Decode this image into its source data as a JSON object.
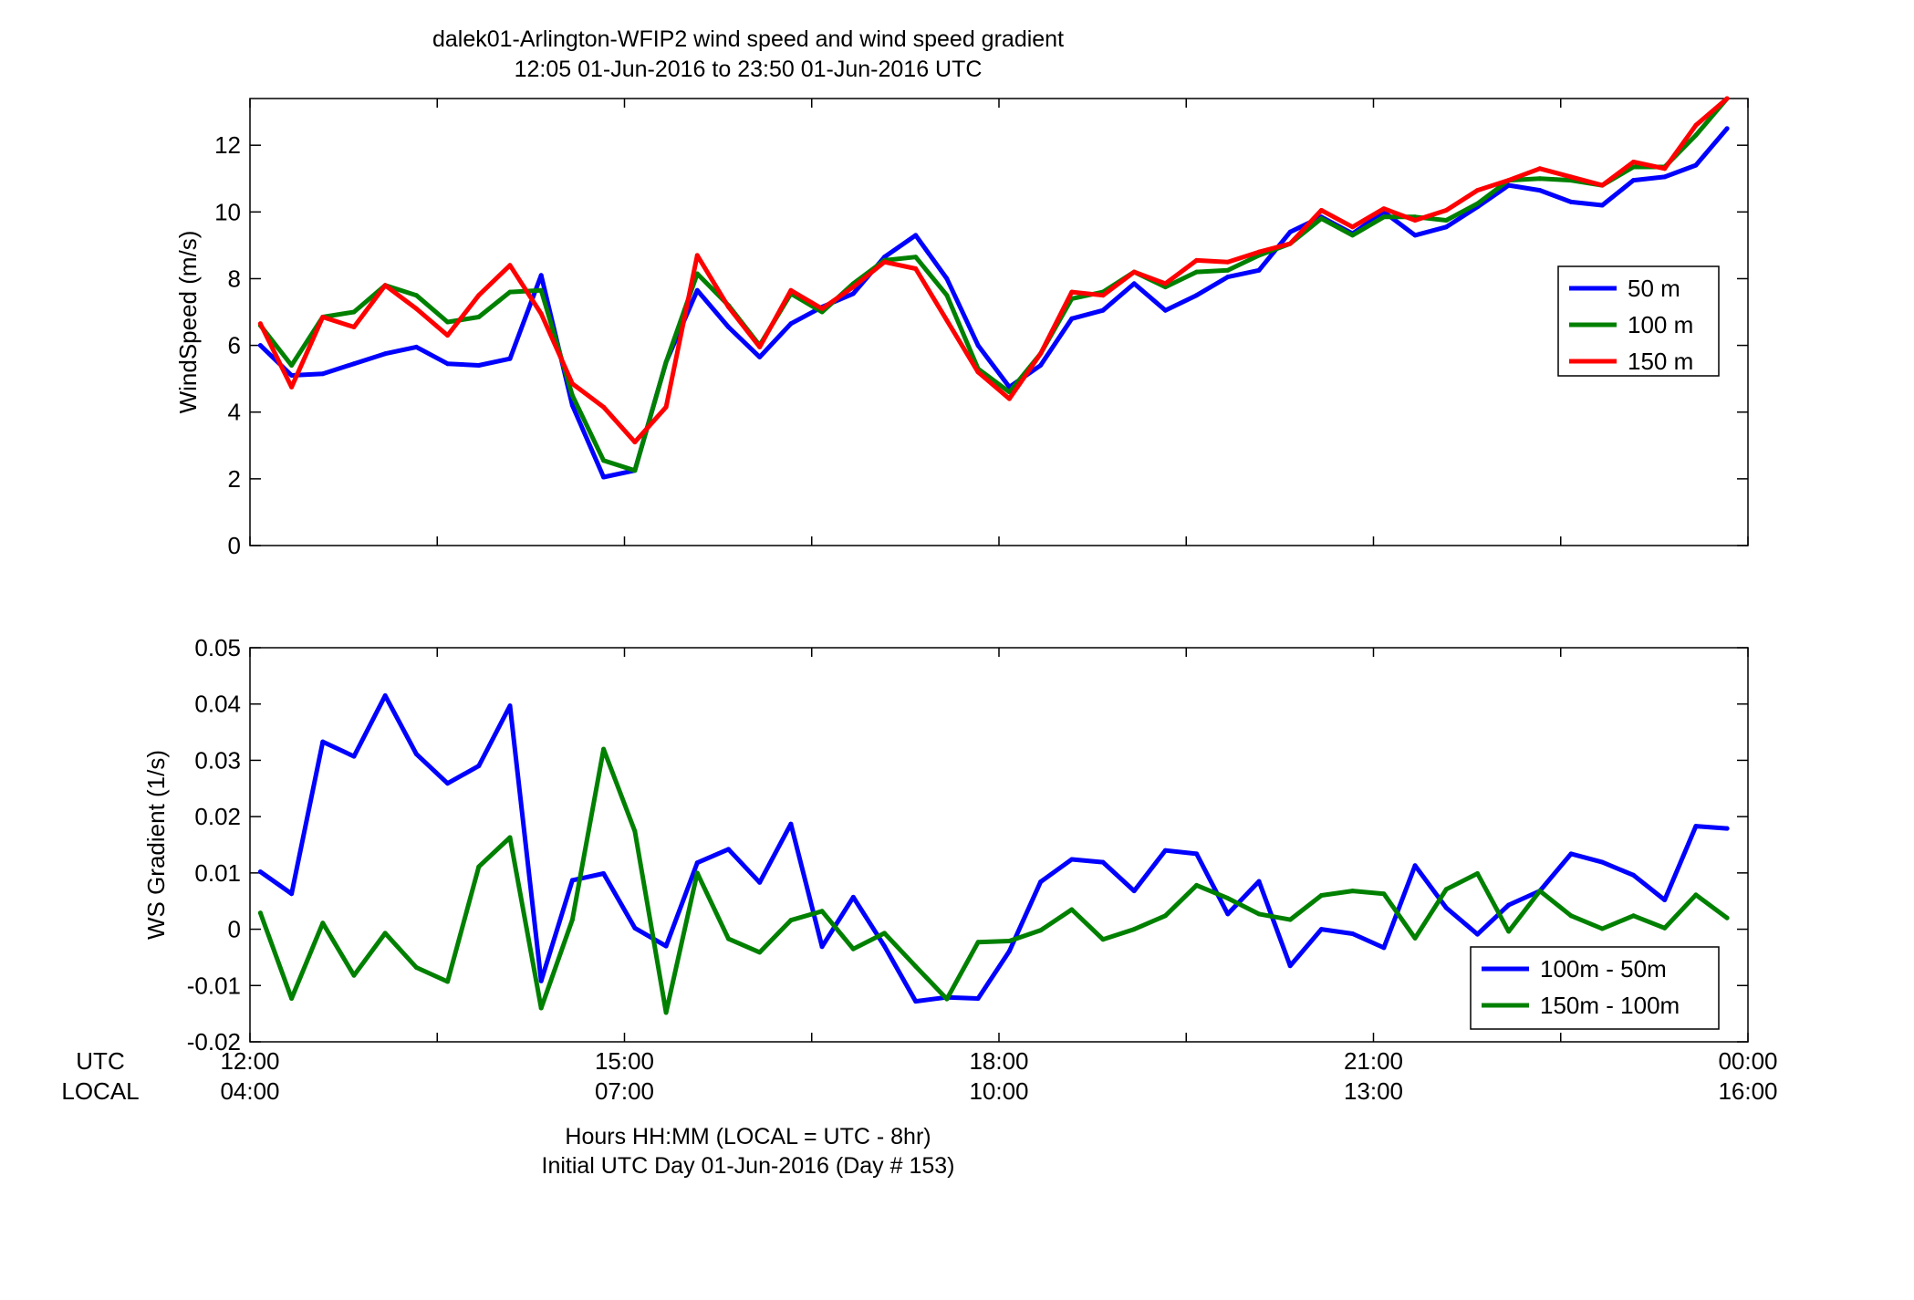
{
  "figure": {
    "title_line1": "dalek01-Arlington-WFIP2  wind speed and wind speed gradient",
    "title_line2": "12:05 01-Jun-2016 to 23:50 01-Jun-2016  UTC",
    "row_label_utc": "UTC",
    "row_label_local": "LOCAL",
    "xlabel_line1": "Hours HH:MM  (LOCAL = UTC - 8hr)",
    "xlabel_line2": "Initial UTC Day 01-Jun-2016 (Day # 153)",
    "x_ticks_utc": [
      "12:00",
      "15:00",
      "18:00",
      "21:00",
      "00:00"
    ],
    "x_ticks_local": [
      "04:00",
      "07:00",
      "10:00",
      "13:00",
      "16:00"
    ]
  },
  "chart_data": [
    {
      "type": "line",
      "title": "",
      "ylabel": "WindSpeed (m/s)",
      "xlim": [
        12.0,
        24.0
      ],
      "ylim": [
        0,
        13.4
      ],
      "yticks": [
        0,
        2,
        4,
        6,
        8,
        10,
        12
      ],
      "ytick_labels": [
        "0",
        "2",
        "4",
        "6",
        "8",
        "10",
        "12"
      ],
      "grid": false,
      "legend_position": "right",
      "x": [
        12.083,
        12.333,
        12.583,
        12.833,
        13.083,
        13.333,
        13.583,
        13.833,
        14.083,
        14.333,
        14.583,
        14.833,
        15.083,
        15.333,
        15.583,
        15.833,
        16.083,
        16.333,
        16.583,
        16.833,
        17.083,
        17.333,
        17.583,
        17.833,
        18.083,
        18.333,
        18.583,
        18.833,
        19.083,
        19.333,
        19.583,
        19.833,
        20.083,
        20.333,
        20.583,
        20.833,
        21.083,
        21.333,
        21.583,
        21.833,
        22.083,
        22.333,
        22.583,
        22.833,
        23.083,
        23.333,
        23.583,
        23.833
      ],
      "series": [
        {
          "name": "50 m",
          "color": "#0000ff",
          "values": [
            6.0,
            5.1,
            5.15,
            5.45,
            5.75,
            5.95,
            5.45,
            5.4,
            5.6,
            8.1,
            4.2,
            2.05,
            2.25,
            5.5,
            7.65,
            6.55,
            5.65,
            6.65,
            7.15,
            7.55,
            8.65,
            9.3,
            8.0,
            6.0,
            4.75,
            5.4,
            6.8,
            7.05,
            7.85,
            7.05,
            7.5,
            8.05,
            8.25,
            9.4,
            9.85,
            9.35,
            10.0,
            9.3,
            9.55,
            10.15,
            10.8,
            10.65,
            10.3,
            10.2,
            10.95,
            11.05,
            11.4,
            12.5
          ]
        },
        {
          "name": "100 m",
          "color": "#008000",
          "values": [
            6.6,
            5.4,
            6.85,
            7.0,
            7.8,
            7.5,
            6.7,
            6.85,
            7.6,
            7.65,
            4.5,
            2.55,
            2.25,
            5.5,
            8.15,
            7.2,
            6.0,
            7.55,
            7.0,
            7.85,
            8.55,
            8.65,
            7.5,
            5.3,
            4.6,
            5.75,
            7.4,
            7.6,
            8.2,
            7.75,
            8.2,
            8.25,
            8.7,
            9.05,
            9.8,
            9.3,
            9.85,
            9.85,
            9.75,
            10.25,
            10.95,
            11.0,
            10.95,
            10.8,
            11.35,
            11.35,
            12.3,
            13.4
          ]
        },
        {
          "name": "150 m",
          "color": "#ff0000",
          "values": [
            6.65,
            4.75,
            6.85,
            6.55,
            7.8,
            7.1,
            6.3,
            7.5,
            8.4,
            6.95,
            4.85,
            4.15,
            3.1,
            4.15,
            8.7,
            7.15,
            5.95,
            7.65,
            7.1,
            7.75,
            8.5,
            8.3,
            6.75,
            5.2,
            4.4,
            5.75,
            7.6,
            7.5,
            8.2,
            7.85,
            8.55,
            8.5,
            8.8,
            9.05,
            10.05,
            9.55,
            10.1,
            9.75,
            10.05,
            10.65,
            10.95,
            11.3,
            11.05,
            10.8,
            11.5,
            11.3,
            12.6,
            13.4
          ]
        }
      ]
    },
    {
      "type": "line",
      "title": "",
      "ylabel": "WS Gradient (1/s)",
      "xlim": [
        12.0,
        24.0
      ],
      "ylim": [
        -0.02,
        0.05
      ],
      "yticks": [
        -0.02,
        -0.01,
        0,
        0.01,
        0.02,
        0.03,
        0.04,
        0.05
      ],
      "ytick_labels": [
        "-0.02",
        "-0.01",
        "0",
        "0.01",
        "0.02",
        "0.03",
        "0.04",
        "0.05"
      ],
      "grid": false,
      "legend_position": "lower right",
      "x": [
        12.083,
        12.333,
        12.583,
        12.833,
        13.083,
        13.333,
        13.583,
        13.833,
        14.083,
        14.333,
        14.583,
        14.833,
        15.083,
        15.333,
        15.583,
        15.833,
        16.083,
        16.333,
        16.583,
        16.833,
        17.083,
        17.333,
        17.583,
        17.833,
        18.083,
        18.333,
        18.583,
        18.833,
        19.083,
        19.333,
        19.583,
        19.833,
        20.083,
        20.333,
        20.583,
        20.833,
        21.083,
        21.333,
        21.583,
        21.833,
        22.083,
        22.333,
        22.583,
        22.833,
        23.083,
        23.333,
        23.583,
        23.833
      ],
      "series": [
        {
          "name": "100m - 50m",
          "color": "#0000ff",
          "values": [
            0.0102,
            0.0063,
            0.0333,
            0.0307,
            0.0415,
            0.0311,
            0.0259,
            0.029,
            0.0397,
            -0.0092,
            0.0087,
            0.0099,
            0.0002,
            -0.003,
            0.0118,
            0.0142,
            0.0083,
            0.0187,
            -0.0031,
            0.0057,
            -0.003,
            -0.0128,
            -0.0121,
            -0.0123,
            -0.0039,
            0.0084,
            0.0124,
            0.0119,
            0.0068,
            0.014,
            0.0134,
            0.0027,
            0.0085,
            -0.0065,
            0.0,
            -0.0008,
            -0.0033,
            0.0113,
            0.0038,
            -0.0009,
            0.0043,
            0.0068,
            0.0134,
            0.0119,
            0.0096,
            0.0052,
            0.0183,
            0.0179
          ]
        },
        {
          "name": "150m - 100m",
          "color": "#008000",
          "values": [
            0.0029,
            -0.0123,
            0.0011,
            -0.0082,
            -0.0007,
            -0.0068,
            -0.0093,
            0.0111,
            0.0163,
            -0.014,
            0.0017,
            0.032,
            0.0174,
            -0.0148,
            0.01,
            -0.0017,
            -0.0041,
            0.0016,
            0.0032,
            -0.0035,
            -0.0007,
            -0.0066,
            -0.0124,
            -0.0023,
            -0.0021,
            -0.0002,
            0.0035,
            -0.0018,
            0.0,
            0.0024,
            0.0078,
            0.0055,
            0.0027,
            0.0017,
            0.006,
            0.0068,
            0.0063,
            -0.0016,
            0.0071,
            0.0099,
            -0.0004,
            0.0068,
            0.0024,
            0.0001,
            0.0024,
            0.0002,
            0.0061,
            0.002
          ]
        }
      ]
    }
  ]
}
